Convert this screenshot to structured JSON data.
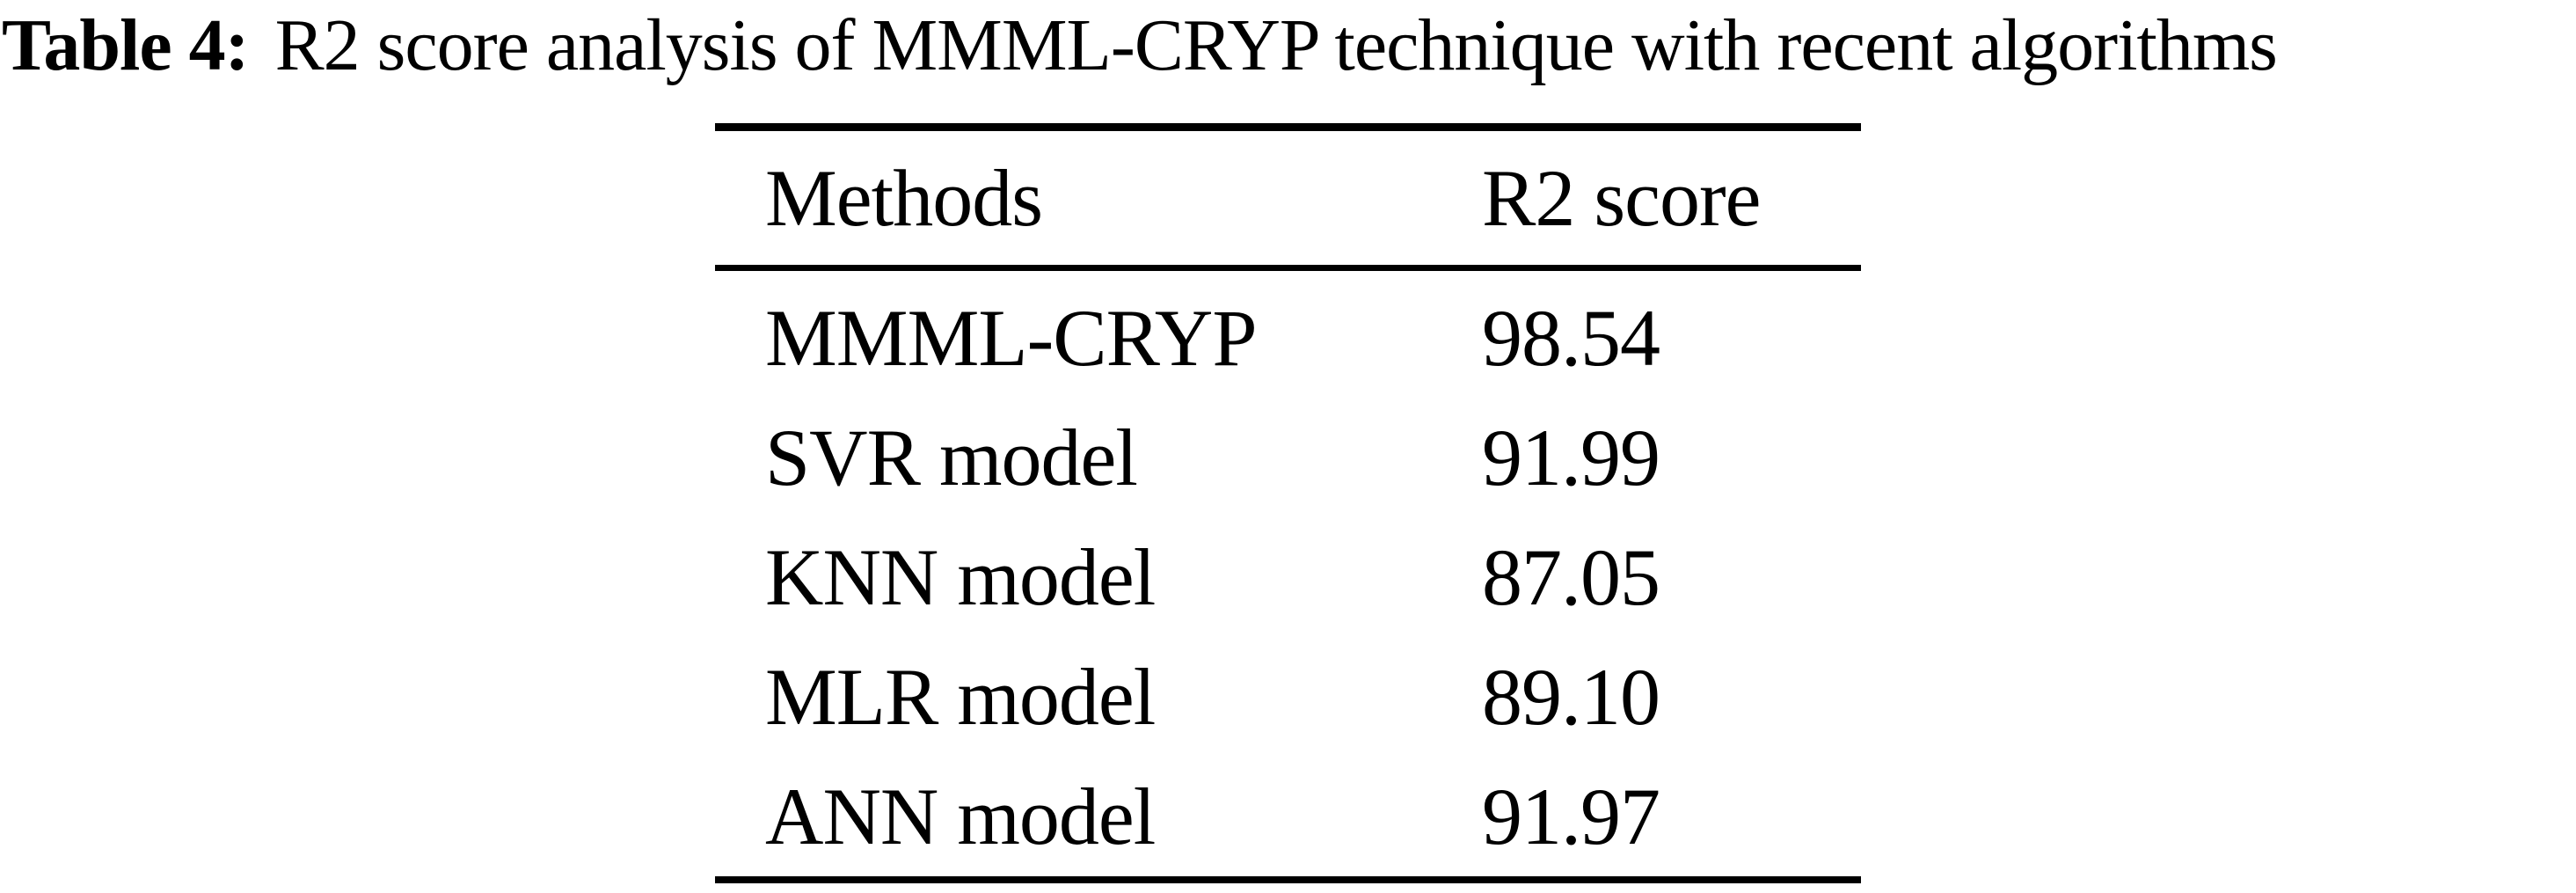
{
  "page": {
    "background": "#ffffff",
    "text_color": "#000000",
    "rule_color": "#000000"
  },
  "caption": {
    "label": "Table 4:",
    "text": "R2 score analysis of MMML-CRYP technique with recent algorithms"
  },
  "table": {
    "columns": [
      "Methods",
      "R2 score"
    ],
    "rows": [
      {
        "method": "MMML-CRYP",
        "score": "98.54"
      },
      {
        "method": "SVR model",
        "score": "91.99"
      },
      {
        "method": "KNN model",
        "score": "87.05"
      },
      {
        "method": "MLR model",
        "score": "89.10"
      },
      {
        "method": "ANN model",
        "score": "91.97"
      }
    ]
  }
}
